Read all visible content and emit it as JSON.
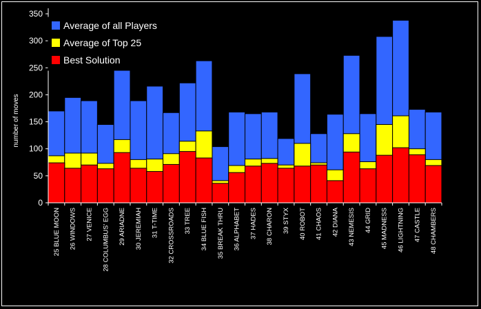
{
  "chart_data": {
    "type": "bar",
    "stacked": false,
    "overlap": true,
    "ylabel": "number of moves",
    "xlabel": "",
    "title": "",
    "ylim": [
      0,
      350
    ],
    "yticks": [
      0,
      50,
      100,
      150,
      200,
      250,
      300,
      350
    ],
    "grid": false,
    "legend_position": "top-left",
    "categories": [
      "25 BLUE MOON",
      "26 WINDOWS",
      "27 VENICE",
      "28 COLUMBUS' EGG",
      "29 ARIADNE",
      "30 JEREMIAH",
      "31 T-TIME",
      "32 CROSSROADS",
      "33 TREE",
      "34 BLUE FISH",
      "35 BREAK THRU",
      "36 ALPHABET",
      "37 HADES",
      "38 CHARON",
      "39 STYX",
      "40 ROBOT",
      "41 CHAOS",
      "42 DIANA",
      "43 NEMESIS",
      "44 GRID",
      "45 MADNESS",
      "46 LIGHTNING",
      "47 CASTLE",
      "48 CHAMBERS"
    ],
    "series": [
      {
        "name": "Average of all Players",
        "color": "#3366ff",
        "values": [
          170,
          195,
          189,
          145,
          263,
          189,
          216,
          167,
          222,
          263,
          104,
          168,
          165,
          168,
          119,
          239,
          128,
          164,
          273,
          165,
          308,
          338,
          173,
          168
        ]
      },
      {
        "name": "Average of Top 25",
        "color": "#ffff00",
        "values": [
          87,
          92,
          92,
          73,
          117,
          80,
          81,
          91,
          114,
          133,
          41,
          69,
          81,
          82,
          70,
          110,
          74,
          61,
          128,
          76,
          145,
          161,
          100,
          80
        ]
      },
      {
        "name": "Best Solution",
        "color": "#ff0000",
        "values": [
          74,
          64,
          70,
          63,
          93,
          64,
          58,
          71,
          95,
          83,
          36,
          56,
          68,
          73,
          64,
          68,
          70,
          41,
          94,
          63,
          88,
          102,
          89,
          69
        ]
      }
    ]
  }
}
